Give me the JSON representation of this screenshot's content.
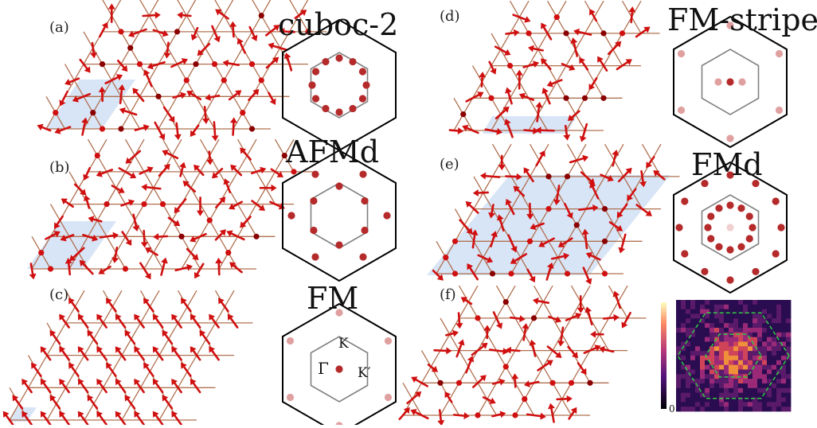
{
  "colors": {
    "bond": "#b07050",
    "arrow": "#d01010",
    "arrow_dark": "#8a0000",
    "highlight": "#b8cff0",
    "hexagon_outer": "#000000",
    "hexagon_inner": "#808080",
    "peak": "#b52a2a",
    "peak_faint": "#e0a0a0",
    "bz_dash": "#2ecc40"
  },
  "panels": [
    {
      "id": "a",
      "label": "(a)",
      "title": "cuboc-2"
    },
    {
      "id": "b",
      "label": "(b)",
      "title": "AFMd"
    },
    {
      "id": "c",
      "label": "(c)",
      "title": "FM"
    },
    {
      "id": "d",
      "label": "(d)",
      "title": "FM-stripe"
    },
    {
      "id": "e",
      "label": "(e)",
      "title": "FMd"
    },
    {
      "id": "f",
      "label": "(f)",
      "title": ""
    }
  ],
  "bz_labels": {
    "gamma": "Γ",
    "k": "K",
    "k_prime": "K′"
  },
  "colorbar": {
    "max_label": "",
    "min_label": "0"
  }
}
